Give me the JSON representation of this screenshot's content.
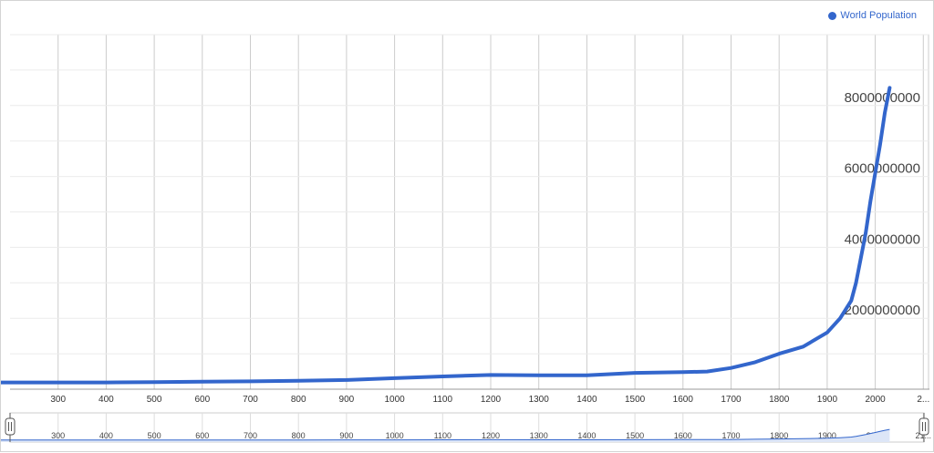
{
  "chart_data": {
    "type": "line",
    "x": [
      1,
      200,
      400,
      500,
      600,
      700,
      800,
      900,
      1000,
      1100,
      1200,
      1300,
      1400,
      1500,
      1600,
      1650,
      1700,
      1750,
      1800,
      1850,
      1900,
      1927,
      1950,
      1960,
      1970,
      1980,
      1990,
      2000,
      2010,
      2020,
      2030
    ],
    "series": [
      {
        "name": "World Population",
        "values": [
          170000000,
          190000000,
          190000000,
          200000000,
          210000000,
          220000000,
          240000000,
          260000000,
          310000000,
          360000000,
          400000000,
          390000000,
          390000000,
          460000000,
          480000000,
          500000000,
          600000000,
          760000000,
          1000000000,
          1200000000,
          1600000000,
          2000000000,
          2500000000,
          3000000000,
          3700000000,
          4400000000,
          5300000000,
          6100000000,
          6900000000,
          7800000000,
          8500000000
        ]
      }
    ],
    "title": "",
    "xlabel": "",
    "ylabel": "",
    "xlim": [
      200,
      2030
    ],
    "ylim": [
      0,
      10000000000
    ],
    "x_ticks": [
      "300",
      "400",
      "500",
      "600",
      "700",
      "800",
      "900",
      "1000",
      "1100",
      "1200",
      "1300",
      "1400",
      "1500",
      "1600",
      "1700",
      "1800",
      "1900",
      "2000",
      "2..."
    ],
    "y_ticks": [
      "2000000000",
      "4000000000",
      "6000000000",
      "8000000000"
    ],
    "navigator_ticks": [
      "300",
      "400",
      "500",
      "600",
      "700",
      "800",
      "900",
      "1000",
      "1100",
      "1200",
      "1300",
      "1400",
      "1500",
      "1600",
      "1700",
      "1800",
      "1900",
      "2000",
      "21..."
    ],
    "grid": true,
    "legend": "top-right",
    "line_color": "#3366cc"
  },
  "legend": {
    "label": "World Population",
    "color": "#3366cc"
  }
}
